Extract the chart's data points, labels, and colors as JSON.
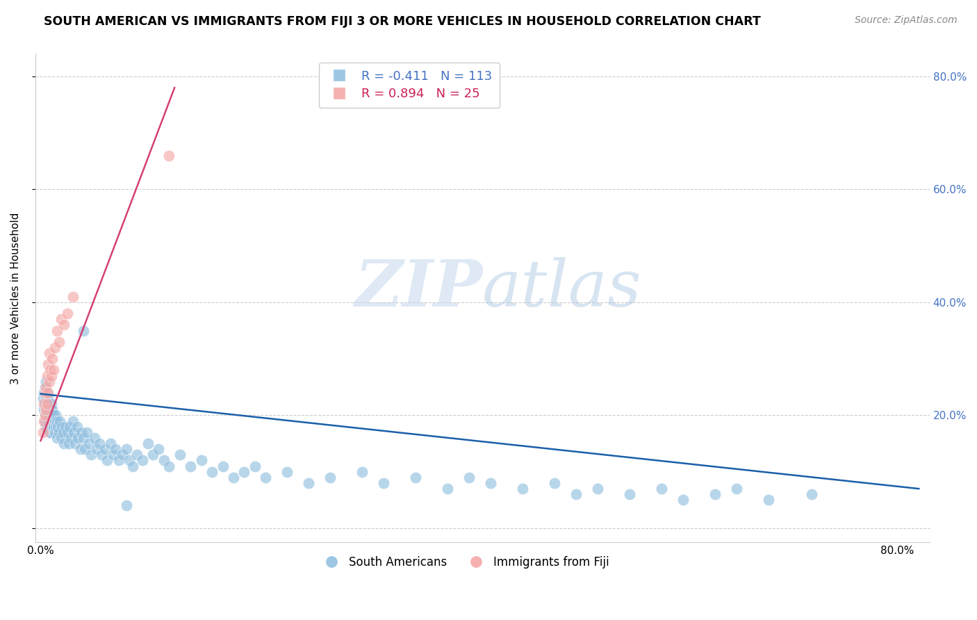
{
  "title": "SOUTH AMERICAN VS IMMIGRANTS FROM FIJI 3 OR MORE VEHICLES IN HOUSEHOLD CORRELATION CHART",
  "source": "Source: ZipAtlas.com",
  "ylabel": "3 or more Vehicles in Household",
  "watermark_zip": "ZIP",
  "watermark_atlas": "atlas",
  "xlim": [
    -0.005,
    0.83
  ],
  "ylim": [
    -0.025,
    0.84
  ],
  "blue_R": -0.411,
  "blue_N": 113,
  "pink_R": 0.894,
  "pink_N": 25,
  "blue_color": "#92c0e0",
  "pink_color": "#f4a9a8",
  "blue_line_color": "#1a5fa8",
  "pink_line_color": "#d44070",
  "legend_label_blue": "South Americans",
  "legend_label_pink": "Immigrants from Fiji",
  "blue_trendline_x": [
    0.0,
    0.82
  ],
  "blue_trendline_y": [
    0.238,
    0.07
  ],
  "pink_trendline_x": [
    0.0,
    0.125
  ],
  "pink_trendline_y": [
    0.155,
    0.78
  ],
  "blue_scatter_x": [
    0.002,
    0.003,
    0.003,
    0.004,
    0.004,
    0.004,
    0.005,
    0.005,
    0.005,
    0.005,
    0.005,
    0.006,
    0.006,
    0.006,
    0.006,
    0.007,
    0.007,
    0.007,
    0.007,
    0.008,
    0.008,
    0.008,
    0.009,
    0.009,
    0.009,
    0.01,
    0.01,
    0.01,
    0.011,
    0.011,
    0.012,
    0.012,
    0.013,
    0.013,
    0.014,
    0.014,
    0.015,
    0.015,
    0.016,
    0.017,
    0.018,
    0.019,
    0.02,
    0.021,
    0.022,
    0.023,
    0.025,
    0.026,
    0.027,
    0.028,
    0.03,
    0.031,
    0.032,
    0.034,
    0.035,
    0.037,
    0.038,
    0.04,
    0.041,
    0.043,
    0.045,
    0.047,
    0.05,
    0.052,
    0.055,
    0.057,
    0.06,
    0.062,
    0.065,
    0.068,
    0.07,
    0.073,
    0.076,
    0.08,
    0.083,
    0.086,
    0.09,
    0.095,
    0.1,
    0.105,
    0.11,
    0.115,
    0.12,
    0.13,
    0.14,
    0.15,
    0.16,
    0.17,
    0.18,
    0.19,
    0.2,
    0.21,
    0.23,
    0.25,
    0.27,
    0.3,
    0.32,
    0.35,
    0.38,
    0.4,
    0.42,
    0.45,
    0.48,
    0.5,
    0.52,
    0.55,
    0.58,
    0.6,
    0.63,
    0.65,
    0.68,
    0.72,
    0.04,
    0.08
  ],
  "blue_scatter_y": [
    0.23,
    0.24,
    0.21,
    0.22,
    0.25,
    0.19,
    0.26,
    0.23,
    0.21,
    0.2,
    0.18,
    0.24,
    0.22,
    0.2,
    0.19,
    0.23,
    0.21,
    0.19,
    0.18,
    0.22,
    0.2,
    0.17,
    0.21,
    0.19,
    0.17,
    0.22,
    0.2,
    0.18,
    0.21,
    0.19,
    0.2,
    0.18,
    0.19,
    0.17,
    0.2,
    0.18,
    0.19,
    0.16,
    0.18,
    0.17,
    0.19,
    0.16,
    0.18,
    0.17,
    0.15,
    0.18,
    0.17,
    0.15,
    0.18,
    0.16,
    0.19,
    0.17,
    0.15,
    0.18,
    0.16,
    0.14,
    0.17,
    0.16,
    0.14,
    0.17,
    0.15,
    0.13,
    0.16,
    0.14,
    0.15,
    0.13,
    0.14,
    0.12,
    0.15,
    0.13,
    0.14,
    0.12,
    0.13,
    0.14,
    0.12,
    0.11,
    0.13,
    0.12,
    0.15,
    0.13,
    0.14,
    0.12,
    0.11,
    0.13,
    0.11,
    0.12,
    0.1,
    0.11,
    0.09,
    0.1,
    0.11,
    0.09,
    0.1,
    0.08,
    0.09,
    0.1,
    0.08,
    0.09,
    0.07,
    0.09,
    0.08,
    0.07,
    0.08,
    0.06,
    0.07,
    0.06,
    0.07,
    0.05,
    0.06,
    0.07,
    0.05,
    0.06,
    0.35,
    0.04
  ],
  "pink_scatter_x": [
    0.002,
    0.003,
    0.003,
    0.004,
    0.004,
    0.005,
    0.005,
    0.006,
    0.006,
    0.007,
    0.007,
    0.008,
    0.008,
    0.009,
    0.01,
    0.011,
    0.012,
    0.013,
    0.015,
    0.017,
    0.019,
    0.022,
    0.025,
    0.03,
    0.12
  ],
  "pink_scatter_y": [
    0.17,
    0.19,
    0.22,
    0.2,
    0.24,
    0.21,
    0.25,
    0.22,
    0.27,
    0.24,
    0.29,
    0.26,
    0.31,
    0.28,
    0.27,
    0.3,
    0.28,
    0.32,
    0.35,
    0.33,
    0.37,
    0.36,
    0.38,
    0.41,
    0.66
  ]
}
